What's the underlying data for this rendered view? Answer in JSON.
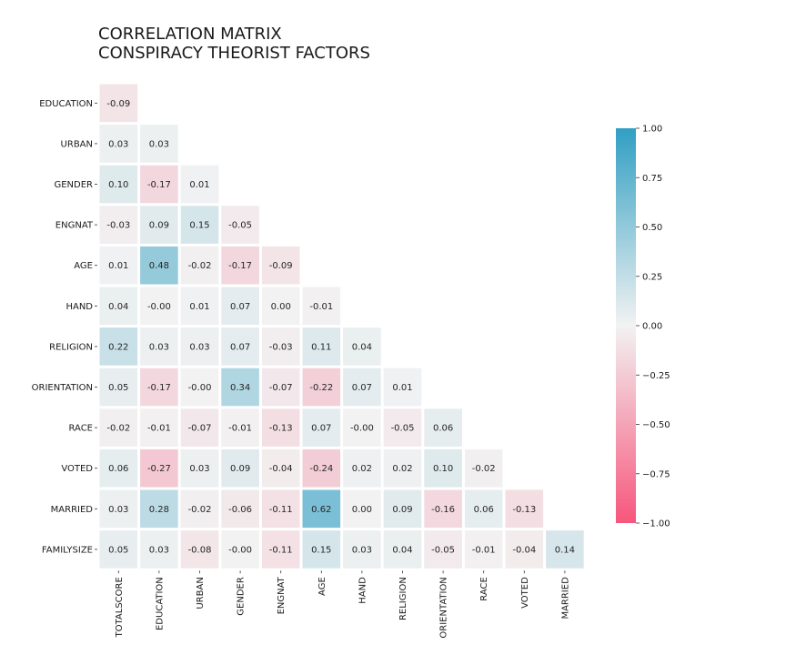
{
  "chart_data": {
    "type": "heatmap",
    "title_lines": [
      "CORRELATION MATRIX",
      "CONSPIRACY THEORIST FACTORS"
    ],
    "row_labels": [
      "EDUCATION",
      "URBAN",
      "GENDER",
      "ENGNAT",
      "AGE",
      "HAND",
      "RELIGION",
      "ORIENTATION",
      "RACE",
      "VOTED",
      "MARRIED",
      "FAMILYSIZE"
    ],
    "col_labels": [
      "TOTALSCORE",
      "EDUCATION",
      "URBAN",
      "GENDER",
      "ENGNAT",
      "AGE",
      "HAND",
      "RELIGION",
      "ORIENTATION",
      "RACE",
      "VOTED",
      "MARRIED"
    ],
    "values": [
      [
        -0.09
      ],
      [
        0.03,
        0.03
      ],
      [
        0.1,
        -0.17,
        0.01
      ],
      [
        -0.03,
        0.09,
        0.15,
        -0.05
      ],
      [
        0.01,
        0.48,
        -0.02,
        -0.17,
        -0.09
      ],
      [
        0.04,
        -0.0,
        0.01,
        0.07,
        0.0,
        -0.01
      ],
      [
        0.22,
        0.03,
        0.03,
        0.07,
        -0.03,
        0.11,
        0.04
      ],
      [
        0.05,
        -0.17,
        -0.0,
        0.34,
        -0.07,
        -0.22,
        0.07,
        0.01
      ],
      [
        -0.02,
        -0.01,
        -0.07,
        -0.01,
        -0.13,
        0.07,
        -0.0,
        -0.05,
        0.06
      ],
      [
        0.06,
        -0.27,
        0.03,
        0.09,
        -0.04,
        -0.24,
        0.02,
        0.02,
        0.1,
        -0.02
      ],
      [
        0.03,
        0.28,
        -0.02,
        -0.06,
        -0.11,
        0.62,
        0.0,
        0.09,
        -0.16,
        0.06,
        -0.13
      ],
      [
        0.05,
        0.03,
        -0.08,
        -0.0,
        -0.11,
        0.15,
        0.03,
        0.04,
        -0.05,
        -0.01,
        -0.04,
        0.14
      ]
    ],
    "value_labels": [
      [
        "-0.09"
      ],
      [
        "0.03",
        "0.03"
      ],
      [
        "0.10",
        "-0.17",
        "0.01"
      ],
      [
        "-0.03",
        "0.09",
        "0.15",
        "-0.05"
      ],
      [
        "0.01",
        "0.48",
        "-0.02",
        "-0.17",
        "-0.09"
      ],
      [
        "0.04",
        "-0.00",
        "0.01",
        "0.07",
        "0.00",
        "-0.01"
      ],
      [
        "0.22",
        "0.03",
        "0.03",
        "0.07",
        "-0.03",
        "0.11",
        "0.04"
      ],
      [
        "0.05",
        "-0.17",
        "-0.00",
        "0.34",
        "-0.07",
        "-0.22",
        "0.07",
        "0.01"
      ],
      [
        "-0.02",
        "-0.01",
        "-0.07",
        "-0.01",
        "-0.13",
        "0.07",
        "-0.00",
        "-0.05",
        "0.06"
      ],
      [
        "0.06",
        "-0.27",
        "0.03",
        "0.09",
        "-0.04",
        "-0.24",
        "0.02",
        "0.02",
        "0.10",
        "-0.02"
      ],
      [
        "0.03",
        "0.28",
        "-0.02",
        "-0.06",
        "-0.11",
        "0.62",
        "0.00",
        "0.09",
        "-0.16",
        "0.06",
        "-0.13"
      ],
      [
        "0.05",
        "0.03",
        "-0.08",
        "-0.00",
        "-0.11",
        "0.15",
        "0.03",
        "0.04",
        "-0.05",
        "-0.01",
        "-0.04",
        "0.14"
      ]
    ],
    "vmin": -1.0,
    "vmax": 1.0,
    "colormap": {
      "negative": "#f7567c",
      "center": "#f2f2f2",
      "positive": "#319fc3"
    },
    "colorbar_ticks": [
      "1.00",
      "0.75",
      "0.50",
      "0.25",
      "0.00",
      "−0.25",
      "−0.50",
      "−0.75",
      "−1.00"
    ],
    "colorbar_tick_values": [
      1.0,
      0.75,
      0.5,
      0.25,
      0.0,
      -0.25,
      -0.5,
      -0.75,
      -1.0
    ],
    "grid": false,
    "legend": "colorbar-right"
  }
}
